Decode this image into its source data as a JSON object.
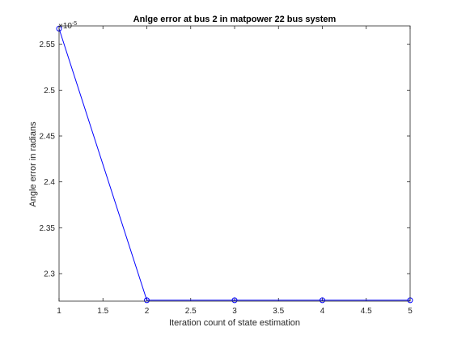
{
  "chart_data": {
    "type": "line",
    "title": "Anlge error at bus 2 in matpower 22 bus system",
    "xlabel": "Iteration count of state estimation",
    "ylabel": "Angle error in radians",
    "exponent_label": "×10",
    "exponent_power": "-5",
    "x": [
      1,
      2,
      3,
      4,
      5
    ],
    "series": [
      {
        "values": [
          2.567,
          2.271,
          2.271,
          2.271,
          2.271
        ],
        "marker": "circle",
        "color": "#0000ff"
      }
    ],
    "xlim": [
      1,
      5
    ],
    "ylim": [
      2.27,
      2.57
    ],
    "x_ticks": [
      1,
      1.5,
      2,
      2.5,
      3,
      3.5,
      4,
      4.5,
      5
    ],
    "x_tick_labels": [
      "1",
      "1.5",
      "2",
      "2.5",
      "3",
      "3.5",
      "4",
      "4.5",
      "5"
    ],
    "y_ticks": [
      2.3,
      2.35,
      2.4,
      2.45,
      2.5,
      2.55
    ],
    "y_tick_labels": [
      "2.3",
      "2.35",
      "2.4",
      "2.45",
      "2.5",
      "2.55"
    ],
    "grid": false,
    "box": true,
    "axis_color": "#262626",
    "line_color": "#0000ff"
  }
}
